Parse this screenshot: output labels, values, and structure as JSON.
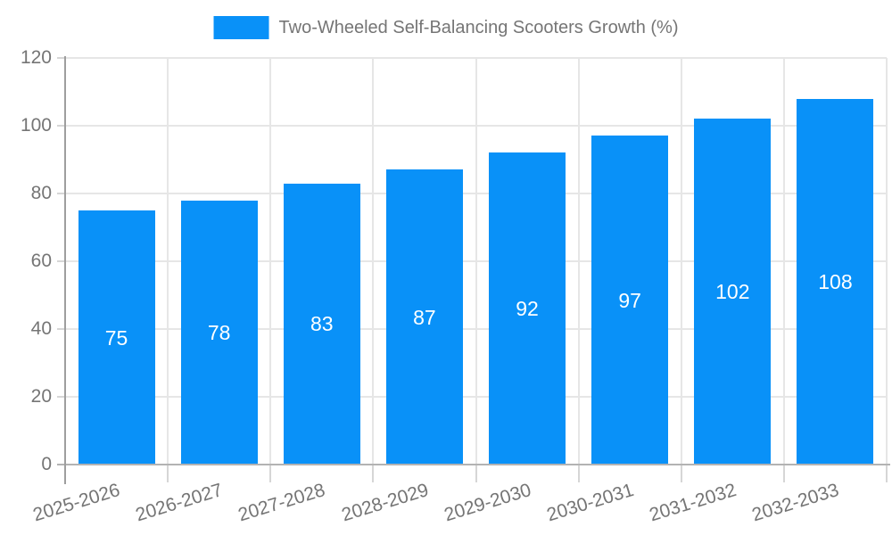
{
  "chart_data": {
    "type": "bar",
    "title": "Two-Wheeled Self-Balancing Scooters Growth (%)",
    "xlabel": "",
    "ylabel": "",
    "categories": [
      "2025-2026",
      "2026-2027",
      "2027-2028",
      "2028-2029",
      "2029-2030",
      "2030-2031",
      "2031-2032",
      "2032-2033"
    ],
    "values": [
      75,
      78,
      83,
      87,
      92,
      97,
      102,
      108
    ],
    "value_labels": [
      "75",
      "78",
      "83",
      "87",
      "92",
      "97",
      "102",
      "108"
    ],
    "ylim": [
      0,
      120
    ],
    "yticks": [
      0,
      20,
      40,
      60,
      80,
      100,
      120
    ],
    "ytick_labels": [
      "0",
      "20",
      "40",
      "60",
      "80",
      "100",
      "120"
    ],
    "grid": true,
    "legend_position": "top-center",
    "colors": {
      "bar": "#0991f8",
      "value_label": "#ffffff",
      "axis_text": "#757575",
      "gridline": "#e6e6e6",
      "y_axis_line": "#9e9e9e",
      "x_axis_line": "#b3b3b3",
      "tick": "#d6d6d6",
      "background": "#ffffff"
    }
  }
}
